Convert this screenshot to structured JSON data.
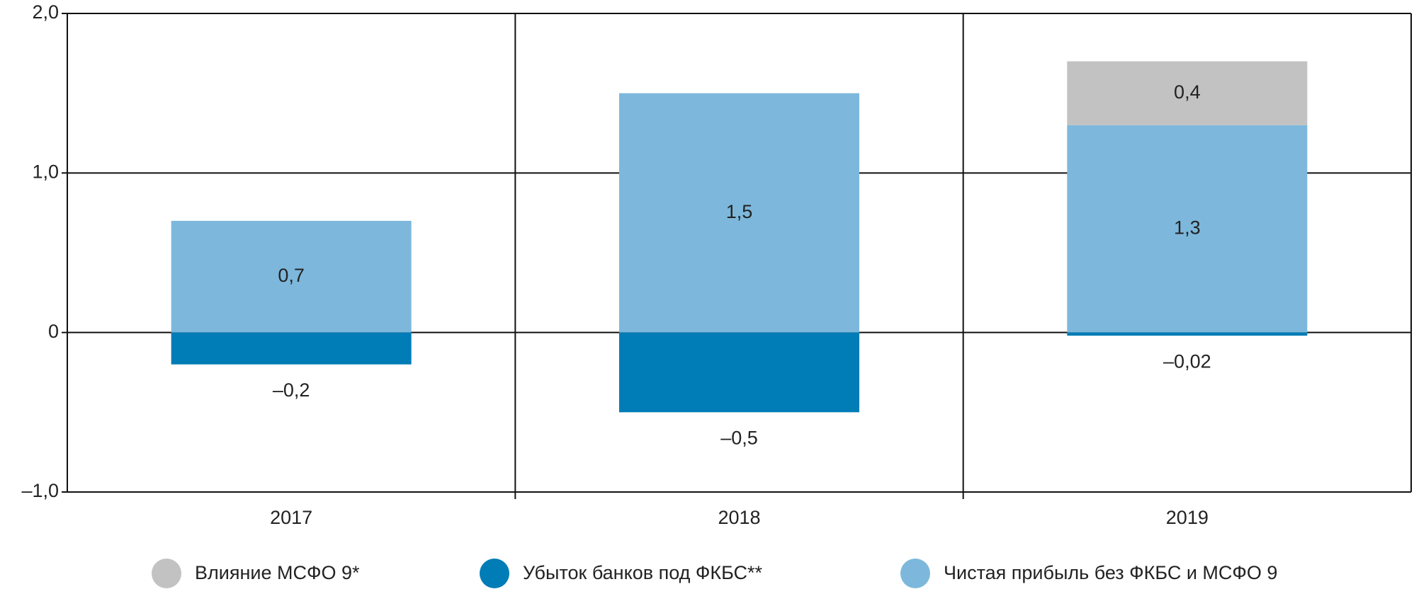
{
  "chart_data": {
    "type": "stacked_bar",
    "categories": [
      "2017",
      "2018",
      "2019"
    ],
    "series": [
      {
        "name": "Влияние МСФО 9*",
        "color": "#c2c2c2",
        "values": [
          null,
          null,
          0.4
        ],
        "value_labels": [
          null,
          null,
          "0,4"
        ]
      },
      {
        "name": "Убыток банков под ФКБС**",
        "color": "#007cb6",
        "values": [
          -0.2,
          -0.5,
          -0.02
        ],
        "value_labels": [
          "–0,2",
          "–0,5",
          "–0,02"
        ]
      },
      {
        "name": "Чистая прибыль без ФКБС и МСФО 9",
        "color": "#7db8dc",
        "values": [
          0.7,
          1.5,
          1.3
        ],
        "value_labels": [
          "0,7",
          "1,5",
          "1,3"
        ]
      }
    ],
    "ylim": [
      -1,
      2
    ],
    "yticks": [
      {
        "value": -1,
        "label": "–1,0"
      },
      0,
      {
        "value": 1,
        "label": "1,0"
      },
      {
        "value": 2,
        "label": "2,0"
      }
    ],
    "grid": true,
    "legend": "bottom"
  }
}
